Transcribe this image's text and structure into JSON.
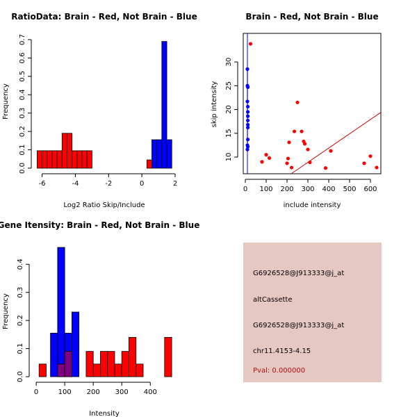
{
  "colors": {
    "brain": "#ff0000",
    "not_brain": "#0000ff",
    "overlap": "#80007f",
    "info_bg": "#e6c8c2",
    "fit_line": "#cc0000"
  },
  "chart_data": [
    {
      "id": "ratio",
      "type": "bar",
      "title": "RatioData: Brain - Red, Not Brain - Blue",
      "xlabel": "Log2 Ratio Skip/Include",
      "ylabel": "Frequency",
      "xlim": [
        -6.4,
        2.0
      ],
      "ylim": [
        0,
        0.7
      ],
      "xticks": [
        "-6",
        "-4",
        "-2",
        "0",
        "2"
      ],
      "xtick_values": [
        -6,
        -4,
        -2,
        0,
        2
      ],
      "yticks": [
        "0.0",
        "0.1",
        "0.2",
        "0.3",
        "0.4",
        "0.5",
        "0.6",
        "0.7"
      ],
      "ytick_values": [
        0,
        0.1,
        0.2,
        0.3,
        0.4,
        0.5,
        0.6,
        0.7
      ],
      "bin_width": 0.3,
      "series": [
        {
          "name": "Brain",
          "color_key": "brain",
          "bin_starts": [
            -6.3,
            -6.0,
            -5.7,
            -5.4,
            -5.1,
            -4.8,
            -4.5,
            -4.2,
            -3.9,
            -3.6,
            -3.3,
            0.3
          ],
          "values": [
            0.095,
            0.095,
            0.095,
            0.095,
            0.095,
            0.19,
            0.19,
            0.095,
            0.095,
            0.095,
            0.095,
            0.045
          ]
        },
        {
          "name": "Not Brain",
          "color_key": "not_brain",
          "bin_starts": [
            0.6,
            0.9,
            1.2,
            1.5
          ],
          "values": [
            0.155,
            0.155,
            0.69,
            0.155
          ]
        }
      ]
    },
    {
      "id": "scatter",
      "type": "scatter",
      "title": "Brain - Red, Not Brain - Blue",
      "xlabel": "include intensity",
      "ylabel": "skip intensity",
      "xlim": [
        -10,
        650
      ],
      "ylim": [
        6.5,
        36
      ],
      "xticks": [
        "0",
        "100",
        "200",
        "300",
        "400",
        "500",
        "600"
      ],
      "xtick_values": [
        0,
        100,
        200,
        300,
        400,
        500,
        600
      ],
      "yticks": [
        "10",
        "15",
        "20",
        "25",
        "30"
      ],
      "ytick_values": [
        10,
        15,
        20,
        25,
        30
      ],
      "series": [
        {
          "name": "Brain",
          "color_key": "brain",
          "x": [
            25,
            80,
            100,
            115,
            200,
            205,
            210,
            222,
            235,
            250,
            270,
            280,
            285,
            300,
            310,
            385,
            410,
            570,
            600,
            630
          ],
          "y": [
            33.8,
            9.0,
            10.5,
            9.8,
            8.7,
            9.7,
            13.1,
            7.8,
            15.4,
            21.5,
            15.4,
            13.3,
            12.8,
            11.6,
            8.9,
            7.7,
            11.3,
            8.7,
            10.2,
            7.8
          ]
        },
        {
          "name": "Not Brain",
          "color_key": "not_brain",
          "x": [
            10,
            10,
            12,
            10,
            12,
            12,
            12,
            12,
            12,
            12,
            12,
            10,
            10,
            12
          ],
          "y": [
            28.5,
            25.0,
            24.7,
            21.7,
            20.6,
            19.5,
            18.6,
            17.7,
            16.8,
            16.2,
            13.7,
            12.5,
            11.6,
            12.2
          ]
        }
      ],
      "vertical_line_x": 10,
      "diagonal_line": [
        [
          220,
          6.5
        ],
        [
          650,
          19.4
        ]
      ]
    },
    {
      "id": "intensity",
      "type": "bar",
      "title": "Gene Itensity: Brain - Red, Not Brain - Blue",
      "xlabel": "Intensity",
      "ylabel": "Frequency",
      "xlim": [
        -10,
        470
      ],
      "ylim": [
        0,
        0.46
      ],
      "xticks": [
        "0",
        "100",
        "200",
        "300",
        "400"
      ],
      "xtick_values": [
        0,
        100,
        200,
        300,
        400
      ],
      "yticks": [
        "0.0",
        "0.1",
        "0.2",
        "0.3",
        "0.4"
      ],
      "ytick_values": [
        0,
        0.1,
        0.2,
        0.3,
        0.4
      ],
      "bin_width": 25,
      "series": [
        {
          "name": "Brain",
          "color_key": "brain",
          "bin_starts": [
            10,
            75,
            100,
            175,
            200,
            225,
            250,
            275,
            300,
            325,
            350,
            450
          ],
          "values": [
            0.045,
            0.045,
            0.09,
            0.09,
            0.045,
            0.09,
            0.09,
            0.045,
            0.09,
            0.14,
            0.045,
            0.14
          ]
        },
        {
          "name": "Not Brain",
          "color_key": "not_brain",
          "bin_starts": [
            50,
            75,
            100,
            125
          ],
          "values": [
            0.155,
            0.46,
            0.155,
            0.23
          ]
        }
      ]
    }
  ],
  "info_panel": {
    "line1": "G6926528@J913333@j_at",
    "line2": "altCassette",
    "line3": "G6926528@J913333@j_at",
    "line4": "chr11.4153-4.15",
    "pval": "Pval: 0.000000"
  }
}
